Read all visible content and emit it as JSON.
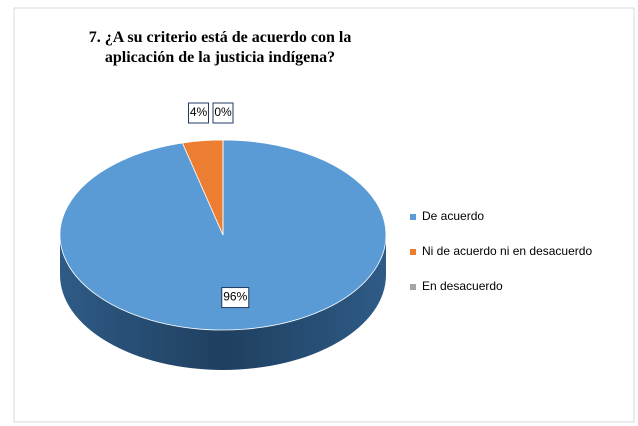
{
  "chart_data": {
    "type": "pie3d",
    "title": "7. ¿A su criterio está de acuerdo con la aplicación de la justicia indígena?",
    "categories": [
      "De acuerdo",
      "Ni de acuerdo ni en desacuerdo",
      "En desacuerdo"
    ],
    "values": [
      96,
      4,
      0
    ],
    "value_labels": [
      "96%",
      "4%",
      "0%"
    ],
    "colors": [
      "#5b9bd5",
      "#ed7d31",
      "#a5a5a5"
    ],
    "legend": "right"
  }
}
